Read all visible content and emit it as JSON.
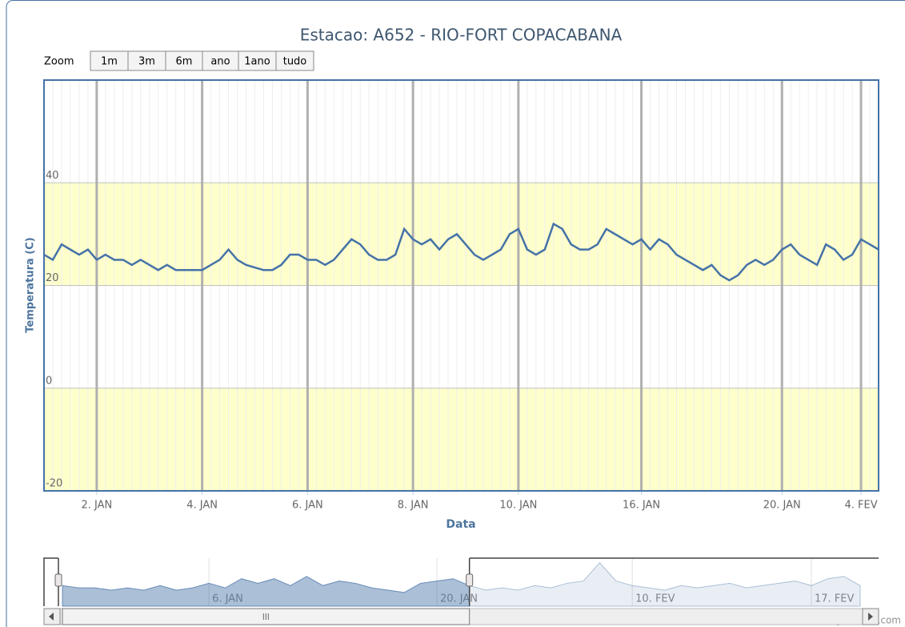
{
  "chart_data": {
    "type": "line",
    "title": "Estacao: A652 - RIO-FORT COPACABANA",
    "zoom_label": "Zoom",
    "zoom_buttons": [
      "1m",
      "3m",
      "6m",
      "ano",
      "1ano",
      "tudo"
    ],
    "x_label": "Data",
    "y_label": "Temperatura (C)",
    "credits": "Highcharts.com",
    "color": "#4572a7",
    "categories": [
      null,
      null,
      null,
      null,
      null,
      null,
      "2. JAN",
      null,
      null,
      null,
      null,
      null,
      null,
      null,
      null,
      null,
      null,
      null,
      "4. JAN",
      null,
      null,
      null,
      null,
      null,
      null,
      null,
      null,
      null,
      null,
      null,
      "6. JAN",
      null,
      null,
      null,
      null,
      null,
      null,
      null,
      null,
      null,
      null,
      null,
      "8. JAN",
      null,
      null,
      null,
      null,
      null,
      null,
      null,
      null,
      null,
      null,
      null,
      "10. JAN",
      null,
      null,
      null,
      null,
      null,
      null,
      null,
      null,
      null,
      null,
      null,
      null,
      null,
      "16. JAN",
      null,
      null,
      null,
      null,
      null,
      null,
      null,
      null,
      null,
      null,
      null,
      null,
      null,
      null,
      null,
      "20. JAN",
      null,
      null,
      null,
      null,
      null,
      null,
      null,
      null,
      "4. FEV",
      null,
      null
    ],
    "values": [
      26,
      25,
      28,
      27,
      26,
      27,
      25,
      26,
      25,
      25,
      24,
      25,
      24,
      23,
      24,
      23,
      23,
      23,
      23,
      24,
      25,
      27,
      25,
      24,
      23.5,
      23,
      23,
      24,
      26,
      26,
      25,
      25,
      24,
      25,
      27,
      29,
      28,
      26,
      25,
      25,
      26,
      31,
      29,
      28,
      29,
      27,
      29,
      30,
      28,
      26,
      25,
      26,
      27,
      30,
      31,
      27,
      26,
      27,
      32,
      31,
      28,
      27,
      27,
      28,
      31,
      30,
      29,
      28,
      29,
      27,
      29,
      28,
      26,
      25,
      24,
      23,
      24,
      22,
      21,
      22,
      24,
      25,
      24,
      25,
      27,
      28,
      26,
      25,
      24,
      28,
      27,
      25,
      26,
      29,
      28,
      27
    ],
    "ylim": [
      -20,
      60
    ],
    "yticks": [
      -20,
      0,
      20,
      40
    ],
    "grid": true,
    "plot_bands": [
      {
        "from": 20,
        "to": 40,
        "color": "#ffffcc"
      },
      {
        "from": -20,
        "to": 0,
        "color": "#ffffcc"
      }
    ],
    "navigator": {
      "categories": [
        null,
        null,
        null,
        null,
        null,
        null,
        null,
        null,
        null,
        "6. JAN",
        null,
        null,
        null,
        null,
        null,
        null,
        null,
        null,
        null,
        null,
        null,
        null,
        null,
        "20. JAN",
        null,
        null,
        null,
        null,
        null,
        null,
        null,
        null,
        null,
        null,
        null,
        "10. FEV",
        null,
        null,
        null,
        null,
        null,
        null,
        null,
        null,
        null,
        null,
        "17. FEV",
        null,
        null,
        null
      ],
      "values": [
        24,
        23,
        23,
        22,
        23,
        22,
        24,
        22,
        23,
        25,
        23,
        27,
        25,
        27,
        24,
        28,
        24,
        26,
        25,
        23,
        22,
        21,
        25,
        26,
        27,
        24,
        22,
        23,
        22,
        24,
        23,
        25,
        26,
        34,
        26,
        24,
        23,
        22,
        24,
        23,
        24,
        25,
        23,
        24,
        25,
        26,
        24,
        27,
        28,
        24
      ],
      "ylim": [
        15,
        36
      ],
      "selected": [
        0,
        25
      ]
    }
  }
}
